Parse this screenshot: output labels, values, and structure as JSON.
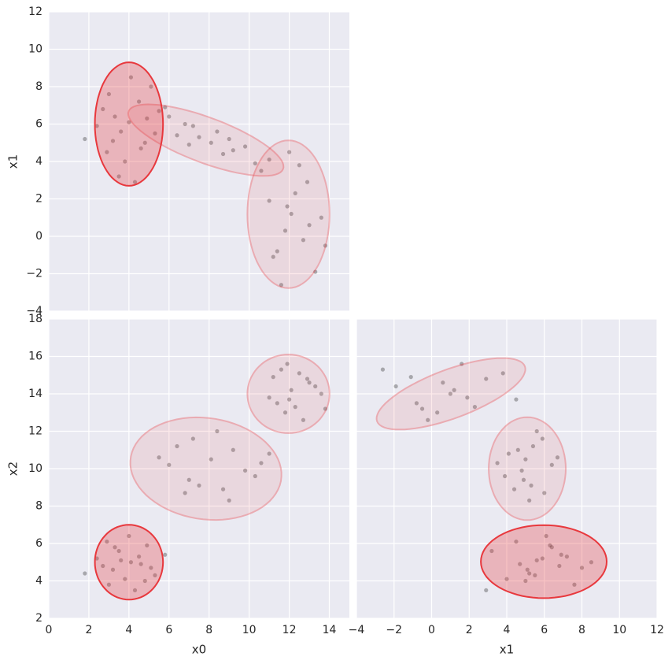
{
  "points": {
    "x0": [
      3.2,
      4.5,
      3.8,
      4.9,
      2.7,
      4.1,
      3.5,
      5.3,
      2.4,
      4.0,
      3.0,
      4.6,
      5.8,
      1.8,
      3.6,
      4.3,
      2.9,
      5.1,
      3.3,
      4.8,
      6.0,
      7.5,
      9.2,
      8.1,
      10.3,
      6.8,
      11.0,
      7.2,
      8.7,
      9.8,
      5.5,
      8.4,
      7.0,
      10.6,
      9.0,
      6.4,
      12.1,
      11.4,
      12.9,
      11.8,
      13.3,
      12.5,
      11.0,
      12.7,
      13.6,
      11.6,
      12.3,
      13.0,
      11.2,
      12.0,
      13.8,
      11.9
    ],
    "x1": [
      5.1,
      7.2,
      4.0,
      6.3,
      6.8,
      8.5,
      3.2,
      5.5,
      5.9,
      6.1,
      7.6,
      4.7,
      6.9,
      5.2,
      5.6,
      2.9,
      4.5,
      8.0,
      6.4,
      5.0,
      6.4,
      5.3,
      4.6,
      5.0,
      3.9,
      6.0,
      4.1,
      5.9,
      4.4,
      4.8,
      6.7,
      5.6,
      4.9,
      3.5,
      5.2,
      5.4,
      1.2,
      -0.8,
      2.9,
      0.3,
      -1.9,
      3.8,
      1.9,
      -0.2,
      1.0,
      -2.6,
      2.3,
      0.6,
      -1.1,
      4.5,
      -0.5,
      1.6
    ],
    "x2": [
      4.6,
      5.3,
      4.1,
      5.9,
      4.8,
      5.0,
      5.6,
      4.3,
      5.2,
      6.4,
      3.8,
      4.9,
      5.4,
      4.4,
      5.1,
      3.5,
      6.1,
      4.7,
      5.8,
      4.0,
      10.2,
      9.1,
      11.0,
      10.5,
      9.6,
      8.7,
      10.8,
      11.6,
      8.9,
      9.9,
      10.6,
      12.0,
      9.4,
      10.3,
      8.3,
      11.2,
      14.2,
      13.5,
      14.8,
      13.0,
      14.4,
      15.1,
      13.8,
      12.6,
      14.0,
      15.3,
      13.3,
      14.6,
      14.9,
      13.7,
      13.2,
      15.6
    ]
  },
  "point_color": "#2b2b2b",
  "chart_data": [
    {
      "type": "scatter",
      "ylabel": "x1",
      "xlabel": "x0",
      "show_xlabel": false,
      "xticklabels": false,
      "yticklabels": true,
      "grid": true,
      "xlim": [
        0,
        15
      ],
      "ylim": [
        -4,
        12
      ],
      "xticks": [
        0,
        2,
        4,
        6,
        8,
        10,
        12,
        14
      ],
      "yticks": [
        {
          "value": -4,
          "label": "−4"
        },
        {
          "value": -2,
          "label": "−2"
        },
        0,
        2,
        4,
        6,
        8,
        10,
        12
      ],
      "color": "#e8383d",
      "ellipses": [
        {
          "cx": 4.0,
          "cy": 6.0,
          "width": 3.4,
          "height": 6.6,
          "angle": 0,
          "alpha": 1.0
        },
        {
          "cx": 7.84,
          "cy": 5.14,
          "width": 8.3,
          "height": 2.4,
          "angle": -22,
          "alpha": 0.35
        },
        {
          "cx": 11.96,
          "cy": 1.18,
          "width": 4.1,
          "height": 7.9,
          "angle": 0,
          "alpha": 0.35
        }
      ]
    },
    {
      "type": "scatter",
      "ylabel": "x2",
      "xlabel": "x0",
      "show_xlabel": true,
      "xticklabels": true,
      "yticklabels": true,
      "grid": true,
      "xlim": [
        0,
        15
      ],
      "ylim": [
        2,
        18
      ],
      "xticks": [
        0,
        2,
        4,
        6,
        8,
        10,
        12,
        14
      ],
      "yticks": [
        2,
        4,
        6,
        8,
        10,
        12,
        14,
        16,
        18
      ],
      "color": "#e8383d",
      "ellipses": [
        {
          "cx": 4.0,
          "cy": 5.0,
          "width": 3.4,
          "height": 4.0,
          "angle": 0,
          "alpha": 1.0
        },
        {
          "cx": 7.84,
          "cy": 10.0,
          "width": 7.6,
          "height": 5.4,
          "angle": -10,
          "alpha": 0.35
        },
        {
          "cx": 11.96,
          "cy": 14.0,
          "width": 4.1,
          "height": 4.2,
          "angle": 0,
          "alpha": 0.35
        }
      ]
    },
    {
      "type": "scatter",
      "xlabel": "x1",
      "show_xlabel": true,
      "ylabel": "x2",
      "show_ylabel": false,
      "xticklabels": true,
      "yticklabels": false,
      "grid": true,
      "xlim": [
        -4,
        12
      ],
      "ylim": [
        2,
        18
      ],
      "xticks": [
        {
          "value": -4,
          "label": "−4"
        },
        {
          "value": -2,
          "label": "−2"
        },
        0,
        2,
        4,
        6,
        8,
        10,
        12
      ],
      "yticks": [
        2,
        4,
        6,
        8,
        10,
        12,
        14,
        16,
        18
      ],
      "color": "#e8383d",
      "ellipses": [
        {
          "cx": 5.97,
          "cy": 5.03,
          "width": 6.7,
          "height": 3.9,
          "angle": 0,
          "alpha": 1.0
        },
        {
          "cx": 5.09,
          "cy": 10.0,
          "width": 4.1,
          "height": 5.5,
          "angle": 0,
          "alpha": 0.35
        },
        {
          "cx": 1.03,
          "cy": 14.0,
          "width": 8.4,
          "height": 2.6,
          "angle": 20.5,
          "alpha": 0.35
        }
      ]
    }
  ]
}
